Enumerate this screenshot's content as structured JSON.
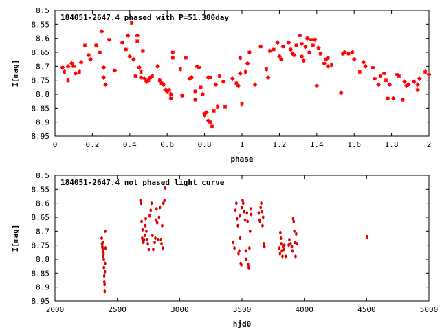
{
  "chart_data": [
    {
      "type": "scatter",
      "title": "184051-2647.4 phased with P=51.300day",
      "xlabel": "phase",
      "ylabel": "I[mag]",
      "xlim": [
        0,
        2
      ],
      "ylim": [
        8.95,
        8.5
      ],
      "y_inverted": true,
      "xticks": [
        "0",
        "0.2",
        "0.4",
        "0.6",
        "0.8",
        "1",
        "1.2",
        "1.4",
        "1.6",
        "1.8",
        "2"
      ],
      "yticks": [
        "8.5",
        "8.55",
        "8.6",
        "8.65",
        "8.7",
        "8.75",
        "8.8",
        "8.85",
        "8.9",
        "8.95"
      ],
      "marker": "star",
      "series": [
        {
          "color": "#ff0000",
          "points": [
            [
              0.04,
              8.705
            ],
            [
              0.05,
              8.72
            ],
            [
              0.07,
              8.7
            ],
            [
              0.07,
              8.75
            ],
            [
              0.09,
              8.69
            ],
            [
              0.1,
              8.7
            ],
            [
              0.11,
              8.725
            ],
            [
              0.13,
              8.72
            ],
            [
              0.14,
              8.685
            ],
            [
              0.16,
              8.625
            ],
            [
              0.18,
              8.66
            ],
            [
              0.19,
              8.675
            ],
            [
              0.22,
              8.625
            ],
            [
              0.24,
              8.65
            ],
            [
              0.25,
              8.575
            ],
            [
              0.26,
              8.705
            ],
            [
              0.26,
              8.74
            ],
            [
              0.27,
              8.765
            ],
            [
              0.29,
              8.605
            ],
            [
              0.32,
              8.715
            ],
            [
              0.36,
              8.615
            ],
            [
              0.38,
              8.64
            ],
            [
              0.39,
              8.59
            ],
            [
              0.4,
              8.665
            ],
            [
              0.41,
              8.545
            ],
            [
              0.42,
              8.675
            ],
            [
              0.43,
              8.735
            ],
            [
              0.44,
              8.59
            ],
            [
              0.44,
              8.61
            ],
            [
              0.45,
              8.705
            ],
            [
              0.46,
              8.72
            ],
            [
              0.46,
              8.74
            ],
            [
              0.47,
              8.645
            ],
            [
              0.48,
              8.745
            ],
            [
              0.49,
              8.755
            ],
            [
              0.5,
              8.75
            ],
            [
              0.51,
              8.74
            ],
            [
              0.52,
              8.735
            ],
            [
              0.55,
              8.7
            ],
            [
              0.56,
              8.75
            ],
            [
              0.57,
              8.76
            ],
            [
              0.58,
              8.765
            ],
            [
              0.59,
              8.785
            ],
            [
              0.6,
              8.79
            ],
            [
              0.61,
              8.785
            ],
            [
              0.62,
              8.8
            ],
            [
              0.62,
              8.815
            ],
            [
              0.63,
              8.65
            ],
            [
              0.63,
              8.67
            ],
            [
              0.67,
              8.71
            ],
            [
              0.68,
              8.805
            ],
            [
              0.7,
              8.67
            ],
            [
              0.72,
              8.745
            ],
            [
              0.73,
              8.74
            ],
            [
              0.75,
              8.79
            ],
            [
              0.75,
              8.82
            ],
            [
              0.76,
              8.7
            ],
            [
              0.77,
              8.705
            ],
            [
              0.78,
              8.775
            ],
            [
              0.79,
              8.8
            ],
            [
              0.8,
              8.87
            ],
            [
              0.8,
              8.875
            ],
            [
              0.81,
              8.865
            ],
            [
              0.82,
              8.895
            ],
            [
              0.82,
              8.74
            ],
            [
              0.83,
              8.74
            ],
            [
              0.83,
              8.9
            ],
            [
              0.84,
              8.915
            ],
            [
              0.85,
              8.86
            ],
            [
              0.86,
              8.765
            ],
            [
              0.87,
              8.845
            ],
            [
              0.88,
              8.735
            ],
            [
              0.9,
              8.755
            ],
            [
              0.91,
              8.845
            ],
            [
              0.95,
              8.745
            ],
            [
              0.97,
              8.76
            ],
            [
              0.98,
              8.77
            ],
            [
              0.99,
              8.725
            ],
            [
              0.99,
              8.67
            ],
            [
              1.0,
              8.835
            ],
            [
              1.02,
              8.72
            ],
            [
              1.03,
              8.69
            ],
            [
              1.04,
              8.65
            ],
            [
              1.07,
              8.765
            ],
            [
              1.1,
              8.63
            ],
            [
              1.13,
              8.71
            ],
            [
              1.14,
              8.74
            ],
            [
              1.15,
              8.645
            ],
            [
              1.17,
              8.64
            ],
            [
              1.19,
              8.615
            ],
            [
              1.2,
              8.665
            ],
            [
              1.21,
              8.675
            ],
            [
              1.22,
              8.63
            ],
            [
              1.25,
              8.615
            ],
            [
              1.26,
              8.64
            ],
            [
              1.27,
              8.655
            ],
            [
              1.28,
              8.66
            ],
            [
              1.29,
              8.625
            ],
            [
              1.31,
              8.59
            ],
            [
              1.32,
              8.62
            ],
            [
              1.32,
              8.665
            ],
            [
              1.33,
              8.68
            ],
            [
              1.34,
              8.63
            ],
            [
              1.35,
              8.6
            ],
            [
              1.36,
              8.65
            ],
            [
              1.37,
              8.605
            ],
            [
              1.38,
              8.625
            ],
            [
              1.39,
              8.605
            ],
            [
              1.4,
              8.77
            ],
            [
              1.41,
              8.635
            ],
            [
              1.42,
              8.655
            ],
            [
              1.44,
              8.69
            ],
            [
              1.45,
              8.675
            ],
            [
              1.46,
              8.7
            ],
            [
              1.46,
              8.67
            ],
            [
              1.48,
              8.695
            ],
            [
              1.53,
              8.795
            ],
            [
              1.54,
              8.655
            ],
            [
              1.55,
              8.65
            ],
            [
              1.57,
              8.655
            ],
            [
              1.59,
              8.65
            ],
            [
              1.6,
              8.675
            ],
            [
              1.63,
              8.72
            ],
            [
              1.65,
              8.685
            ],
            [
              1.66,
              8.7
            ],
            [
              1.7,
              8.705
            ],
            [
              1.71,
              8.745
            ],
            [
              1.73,
              8.765
            ],
            [
              1.74,
              8.735
            ],
            [
              1.76,
              8.725
            ],
            [
              1.77,
              8.75
            ],
            [
              1.78,
              8.815
            ],
            [
              1.79,
              8.765
            ],
            [
              1.81,
              8.815
            ],
            [
              1.83,
              8.73
            ],
            [
              1.84,
              8.735
            ],
            [
              1.86,
              8.82
            ],
            [
              1.87,
              8.755
            ],
            [
              1.88,
              8.77
            ],
            [
              1.89,
              8.765
            ],
            [
              1.92,
              8.755
            ],
            [
              1.94,
              8.785
            ],
            [
              1.94,
              8.765
            ],
            [
              1.95,
              8.745
            ],
            [
              1.98,
              8.72
            ],
            [
              2.0,
              8.73
            ]
          ]
        }
      ]
    },
    {
      "type": "scatter",
      "title": "184051-2647.4 not phased light curve",
      "xlabel": "hjd0",
      "ylabel": "I[mag]",
      "xlim": [
        2000,
        5000
      ],
      "ylim": [
        8.95,
        8.5
      ],
      "y_inverted": true,
      "xticks": [
        "2000",
        "2500",
        "3000",
        "3500",
        "4000",
        "4500",
        "5000"
      ],
      "yticks": [
        "8.5",
        "8.55",
        "8.6",
        "8.65",
        "8.7",
        "8.75",
        "8.8",
        "8.85",
        "8.9",
        "8.95"
      ],
      "marker": "dot",
      "series": [
        {
          "color": "#e00000",
          "points": [
            [
              2375,
              8.725
            ],
            [
              2378,
              8.745
            ],
            [
              2380,
              8.755
            ],
            [
              2382,
              8.76
            ],
            [
              2384,
              8.74
            ],
            [
              2386,
              8.77
            ],
            [
              2388,
              8.79
            ],
            [
              2390,
              8.78
            ],
            [
              2392,
              8.8
            ],
            [
              2393,
              8.83
            ],
            [
              2395,
              8.86
            ],
            [
              2396,
              8.88
            ],
            [
              2398,
              8.89
            ],
            [
              2399,
              8.915
            ],
            [
              2401,
              8.845
            ],
            [
              2402,
              8.815
            ],
            [
              2403,
              8.7
            ],
            [
              2405,
              8.76
            ],
            [
              2685,
              8.59
            ],
            [
              2690,
              8.6
            ],
            [
              2695,
              8.665
            ],
            [
              2700,
              8.725
            ],
            [
              2703,
              8.695
            ],
            [
              2706,
              8.735
            ],
            [
              2710,
              8.74
            ],
            [
              2715,
              8.73
            ],
            [
              2720,
              8.715
            ],
            [
              2724,
              8.68
            ],
            [
              2728,
              8.655
            ],
            [
              2733,
              8.7
            ],
            [
              2740,
              8.73
            ],
            [
              2745,
              8.745
            ],
            [
              2752,
              8.765
            ],
            [
              2760,
              8.645
            ],
            [
              2768,
              8.625
            ],
            [
              2775,
              8.6
            ],
            [
              2782,
              8.715
            ],
            [
              2788,
              8.765
            ],
            [
              2800,
              8.74
            ],
            [
              2805,
              8.725
            ],
            [
              2810,
              8.66
            ],
            [
              2815,
              8.62
            ],
            [
              2820,
              8.67
            ],
            [
              2828,
              8.73
            ],
            [
              2835,
              8.65
            ],
            [
              2842,
              8.615
            ],
            [
              2850,
              8.73
            ],
            [
              2855,
              8.745
            ],
            [
              2860,
              8.68
            ],
            [
              2865,
              8.76
            ],
            [
              2870,
              8.6
            ],
            [
              2878,
              8.59
            ],
            [
              2885,
              8.545
            ],
            [
              3430,
              8.74
            ],
            [
              3440,
              8.76
            ],
            [
              3448,
              8.625
            ],
            [
              3455,
              8.6
            ],
            [
              3460,
              8.655
            ],
            [
              3467,
              8.68
            ],
            [
              3472,
              8.78
            ],
            [
              3478,
              8.77
            ],
            [
              3482,
              8.645
            ],
            [
              3486,
              8.725
            ],
            [
              3490,
              8.815
            ],
            [
              3495,
              8.82
            ],
            [
              3500,
              8.615
            ],
            [
              3505,
              8.59
            ],
            [
              3510,
              8.6
            ],
            [
              3518,
              8.63
            ],
            [
              3525,
              8.66
            ],
            [
              3530,
              8.77
            ],
            [
              3535,
              8.8
            ],
            [
              3540,
              8.635
            ],
            [
              3545,
              8.665
            ],
            [
              3550,
              8.82
            ],
            [
              3555,
              8.83
            ],
            [
              3560,
              8.76
            ],
            [
              3565,
              8.7
            ],
            [
              3570,
              8.62
            ],
            [
              3575,
              8.64
            ],
            [
              3635,
              8.635
            ],
            [
              3640,
              8.66
            ],
            [
              3645,
              8.665
            ],
            [
              3650,
              8.615
            ],
            [
              3655,
              8.6
            ],
            [
              3660,
              8.63
            ],
            [
              3665,
              8.68
            ],
            [
              3670,
              8.65
            ],
            [
              3675,
              8.745
            ],
            [
              3680,
              8.755
            ],
            [
              3800,
              8.76
            ],
            [
              3805,
              8.78
            ],
            [
              3808,
              8.705
            ],
            [
              3812,
              8.725
            ],
            [
              3815,
              8.745
            ],
            [
              3820,
              8.77
            ],
            [
              3825,
              8.79
            ],
            [
              3830,
              8.755
            ],
            [
              3835,
              8.765
            ],
            [
              3840,
              8.75
            ],
            [
              3850,
              8.79
            ],
            [
              3875,
              8.75
            ],
            [
              3880,
              8.73
            ],
            [
              3890,
              8.745
            ],
            [
              3900,
              8.755
            ],
            [
              3905,
              8.77
            ],
            [
              3910,
              8.655
            ],
            [
              3915,
              8.665
            ],
            [
              3920,
              8.7
            ],
            [
              3925,
              8.74
            ],
            [
              3930,
              8.79
            ],
            [
              3935,
              8.71
            ],
            [
              3940,
              8.745
            ],
            [
              4505,
              8.72
            ]
          ]
        }
      ]
    }
  ]
}
